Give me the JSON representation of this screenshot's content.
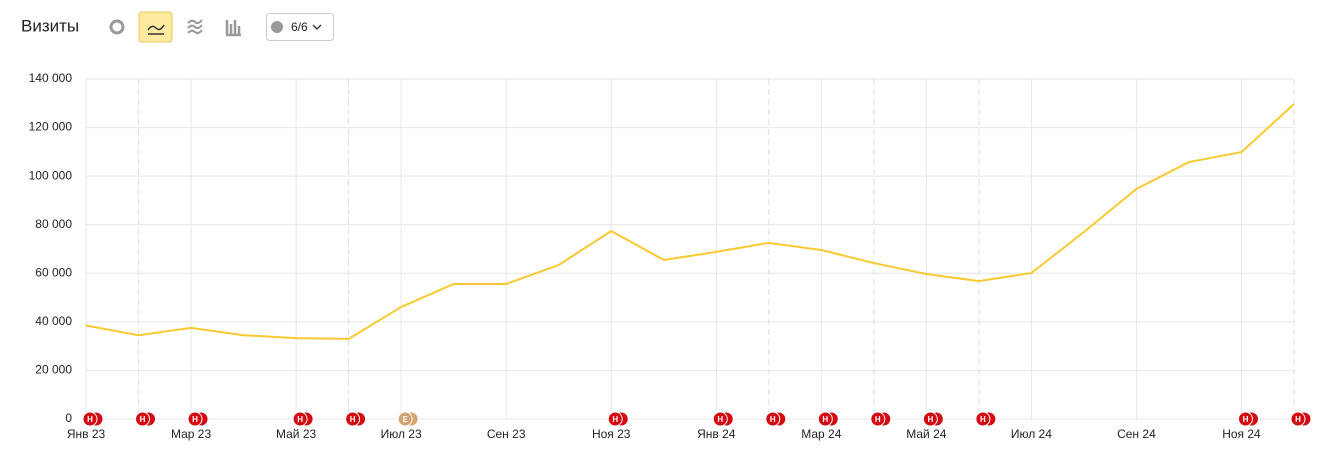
{
  "header": {
    "title": "Визиты",
    "comments": "6/6"
  },
  "chart_data": {
    "type": "line",
    "categories": [
      "Янв 23",
      null,
      "Мар 23",
      null,
      "Май 23",
      null,
      "Июл 23",
      null,
      "Сен 23",
      null,
      "Ноя 23",
      null,
      "Янв 24",
      null,
      "Мар 24",
      null,
      "Май 24",
      null,
      "Июл 24",
      null,
      "Сен 24",
      null,
      "Ноя 24",
      null
    ],
    "series": [
      {
        "name": "Визиты",
        "color": "#f9c931",
        "values": [
          38500,
          34500,
          37500,
          34500,
          33300,
          33000,
          46100,
          55600,
          55600,
          63400,
          77400,
          65500,
          68800,
          72500,
          69600,
          64200,
          59700,
          56800,
          60100,
          77000,
          94700,
          105800,
          109900,
          129700
        ]
      }
    ],
    "ylim": [
      0,
      140000
    ],
    "yticks": [
      0,
      {
        "value": 20000,
        "label": "20 000"
      },
      {
        "value": 40000,
        "label": "40 000"
      },
      {
        "value": 60000,
        "label": "60 000"
      },
      {
        "value": 80000,
        "label": "80 000"
      },
      {
        "value": 100000,
        "label": "100 000"
      },
      {
        "value": 120000,
        "label": "120 000"
      },
      {
        "value": 140000,
        "label": "140 000"
      }
    ],
    "grid": true,
    "annotations": [
      "Н",
      "Н",
      "Н",
      null,
      "Н",
      "Н",
      "Е",
      null,
      null,
      null,
      "Н",
      null,
      "Н",
      "Н",
      "Н",
      "Н",
      "Н",
      "Н",
      null,
      null,
      null,
      null,
      "Н",
      "Н"
    ]
  }
}
